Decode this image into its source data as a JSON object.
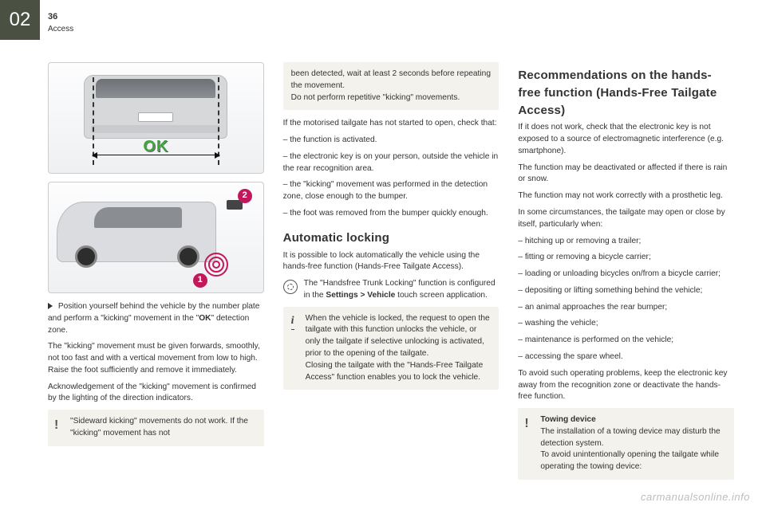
{
  "chapter": "02",
  "page_number": "36",
  "subtitle": "Access",
  "illus1": {
    "ok": "OK"
  },
  "illus2": {
    "badge1": "1",
    "badge2": "2"
  },
  "col1": {
    "p1a": "Position yourself behind the vehicle by the number plate and perform a \"kicking\" movement in the \"",
    "p1_ok": "OK",
    "p1b": "\" detection zone.",
    "p2": "The \"kicking\" movement must be given forwards, smoothly, not too fast and with a vertical movement from low to high. Raise the foot sufficiently and remove it immediately.",
    "p3": "Acknowledgement of the \"kicking\" movement is confirmed by the lighting of the direction indicators.",
    "warn": "\"Sideward kicking\" movements do not work. If the \"kicking\" movement has not"
  },
  "col2": {
    "warn_cont": "been detected, wait at least 2 seconds before repeating the movement.\nDo not perform repetitive \"kicking\" movements.",
    "p1": "If the motorised tailgate has not started to open, check that:",
    "li1": "–  the function is activated.",
    "li2": "–  the electronic key is on your person, outside the vehicle in the rear recognition area.",
    "li3": "–  the \"kicking\" movement was performed in the detection zone, close enough to the bumper.",
    "li4": "–  the foot was removed from the bumper quickly enough.",
    "h_auto": "Automatic locking",
    "auto_p1": "It is possible to lock automatically the vehicle using the hands-free function (Hands-Free Tailgate Access).",
    "gear_a": "The \"Handsfree Trunk Locking\" function is configured in the ",
    "gear_bold": "Settings > Vehicle",
    "gear_b": " touch screen application.",
    "info": "When the vehicle is locked, the request to open the tailgate with this function unlocks the vehicle, or only the tailgate if selective unlocking is activated, prior to the opening of the tailgate.\nClosing the tailgate with the \"Hands-Free Tailgate Access\" function enables you to lock the vehicle."
  },
  "col3": {
    "h_rec": "Recommendations on the hands-free function (Hands-Free Tailgate Access)",
    "p1": "If it does not work, check that the electronic key is not exposed to a source of electromagnetic interference (e.g. smartphone).",
    "p2": "The function may be deactivated or affected if there is rain or snow.",
    "p3": "The function may not work correctly with a prosthetic leg.",
    "p4": "In some circumstances, the tailgate may open or close by itself, particularly when:",
    "li1": "–  hitching up or removing a trailer;",
    "li2": "–  fitting or removing a bicycle carrier;",
    "li3": "–  loading or unloading bicycles on/from a bicycle carrier;",
    "li4": "–  depositing or lifting something behind the vehicle;",
    "li5": "–  an animal approaches the rear bumper;",
    "li6": "–  washing the vehicle;",
    "li7": "–  maintenance is performed on the vehicle;",
    "li8": "–  accessing the spare wheel.",
    "p5": "To avoid such operating problems, keep the electronic key away from the recognition zone or deactivate the hands-free function.",
    "warn_title": "Towing device",
    "warn_body": "The installation of a towing device may disturb the detection system.\nTo avoid unintentionally opening the tailgate while operating the towing device:"
  },
  "watermark": "carmanualsonline.info"
}
